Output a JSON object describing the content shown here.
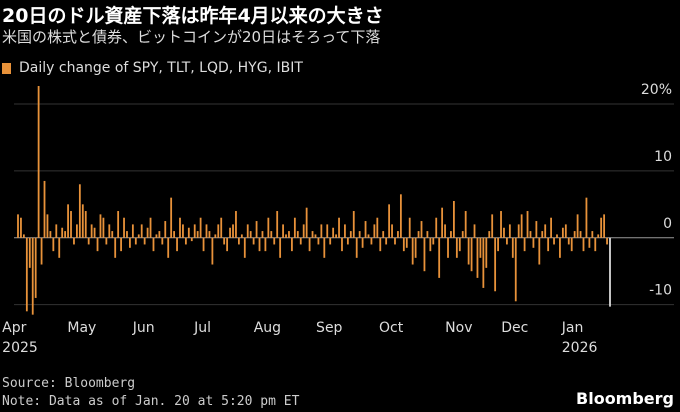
{
  "chart_data": {
    "type": "bar",
    "title": "20日のドル資産下落は昨年4月以来の大きさ",
    "subtitle": "米国の株式と債券、ビットコインが20日はそろって下落",
    "legend_label": "Daily change of SPY, TLT, LQD, HYG, IBIT",
    "color": "#e8923a",
    "last_bar_color": "#d9d9d9",
    "source": "Source: Bloomberg",
    "note": "Note: Data as of Jan. 20 at 5:20 pm ET",
    "brand": "Bloomberg",
    "ylim": [
      -12,
      23
    ],
    "yticks": [
      {
        "value": 20,
        "label": "20%"
      },
      10,
      0,
      -10
    ],
    "grid": true,
    "categories": [
      "Apr\n2025",
      null,
      null,
      null,
      null,
      null,
      null,
      null,
      null,
      null,
      null,
      null,
      null,
      null,
      null,
      null,
      null,
      null,
      null,
      null,
      null,
      "May",
      null,
      null,
      null,
      null,
      null,
      null,
      null,
      null,
      null,
      null,
      null,
      null,
      null,
      null,
      null,
      null,
      null,
      null,
      null,
      null,
      "Jun",
      null,
      null,
      null,
      null,
      null,
      null,
      null,
      null,
      null,
      null,
      null,
      null,
      null,
      null,
      null,
      null,
      null,
      null,
      null,
      "Jul",
      null,
      null,
      null,
      null,
      null,
      null,
      null,
      null,
      null,
      null,
      null,
      null,
      null,
      null,
      null,
      null,
      null,
      null,
      null,
      null,
      null,
      "Aug",
      null,
      null,
      null,
      null,
      null,
      null,
      null,
      null,
      null,
      null,
      null,
      null,
      null,
      null,
      null,
      null,
      null,
      null,
      null,
      null,
      "Sep",
      null,
      null,
      null,
      null,
      null,
      null,
      null,
      null,
      null,
      null,
      null,
      null,
      null,
      null,
      null,
      null,
      null,
      null,
      null,
      null,
      "Oct",
      null,
      null,
      null,
      null,
      null,
      null,
      null,
      null,
      null,
      null,
      null,
      null,
      null,
      null,
      null,
      null,
      null,
      null,
      null,
      null,
      null,
      null,
      "Nov",
      null,
      null,
      null,
      null,
      null,
      null,
      null,
      null,
      null,
      null,
      null,
      null,
      null,
      null,
      null,
      null,
      null,
      null,
      "Dec",
      null,
      null,
      null,
      null,
      null,
      null,
      null,
      null,
      null,
      null,
      null,
      null,
      null,
      null,
      null,
      null,
      null,
      null,
      null,
      null,
      null,
      "Jan\n2026",
      null,
      null,
      null,
      null,
      null,
      null,
      null,
      null,
      null,
      null,
      null
    ],
    "values": [
      3.5,
      3,
      0.5,
      -11,
      -4.5,
      -11.5,
      -9,
      22.7,
      -4,
      8.5,
      3.5,
      1,
      -2,
      2,
      -3,
      1.5,
      1,
      5,
      4,
      -1,
      2,
      8,
      5,
      4,
      -1,
      2,
      1.5,
      -2,
      3.5,
      3,
      -1,
      2,
      1,
      -3,
      4,
      -2,
      3,
      1,
      -1.5,
      2,
      -1,
      0.5,
      2,
      -1,
      1.5,
      3,
      -2,
      0.5,
      1,
      -1,
      2.5,
      -3,
      6,
      1,
      -2,
      3,
      2,
      -1,
      1.5,
      -0.5,
      2,
      1,
      3,
      -2,
      2,
      1,
      -4,
      0.5,
      2,
      3,
      -1,
      -2,
      1.5,
      2,
      4,
      -1,
      0.5,
      -3,
      2,
      1,
      -1,
      2.5,
      -2,
      1,
      -2,
      3,
      1,
      -1,
      4,
      -3,
      2,
      0.5,
      1,
      -2,
      3,
      1,
      -1,
      2,
      4.5,
      -2,
      1,
      0.5,
      -1,
      2,
      -3,
      2,
      -1,
      1.5,
      0.5,
      3,
      -2,
      2,
      -1,
      1,
      4,
      -3,
      1,
      -1.5,
      2.5,
      0.5,
      -1,
      2,
      3,
      -2,
      1,
      -1,
      5,
      2,
      -1,
      1,
      6.5,
      -2,
      -1.5,
      3,
      -4,
      -3,
      1,
      2.5,
      -5,
      1,
      -2,
      -1,
      3,
      -6,
      4.5,
      2,
      -3,
      1,
      5.5,
      -3,
      -2,
      1,
      4,
      -4,
      -5,
      2,
      -6,
      -3,
      -7.5,
      -4.5,
      1,
      3.5,
      -8,
      -2,
      4,
      1.5,
      -1,
      2,
      -3,
      -9.5,
      2,
      3.5,
      -2,
      4,
      1,
      -1.5,
      2.5,
      -4,
      1,
      2,
      -2,
      3,
      -1,
      0.5,
      -3,
      1.5,
      2,
      -1,
      -2,
      1,
      3.5,
      1,
      -2,
      6,
      -1.5,
      1,
      -2,
      0.5,
      3,
      3.5,
      -1,
      -10.3
    ]
  }
}
